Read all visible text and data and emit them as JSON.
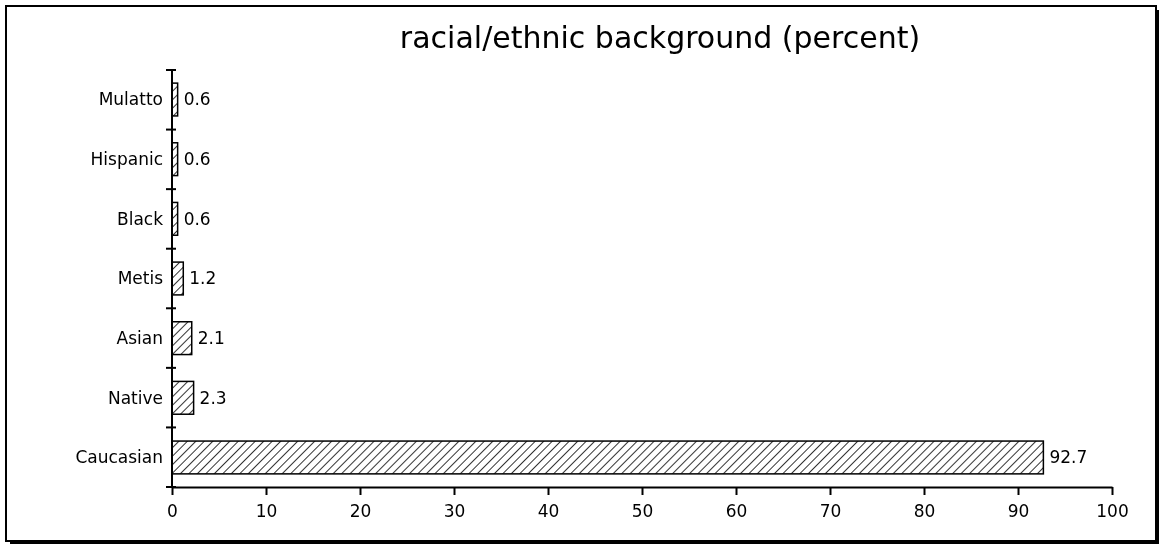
{
  "chart_data": {
    "type": "bar",
    "orientation": "horizontal",
    "title": "racial/ethnic background  (percent)",
    "categories": [
      "Mulatto",
      "Hispanic",
      "Black",
      "Metis",
      "Asian",
      "Native",
      "Caucasian"
    ],
    "values": [
      0.6,
      0.6,
      0.6,
      1.2,
      2.1,
      2.3,
      92.7
    ],
    "color": "#000000",
    "xlim": [
      0,
      100
    ],
    "xticks": [
      0,
      10,
      20,
      30,
      40,
      50,
      60,
      70,
      80,
      90,
      100
    ],
    "data_labels": true
  }
}
